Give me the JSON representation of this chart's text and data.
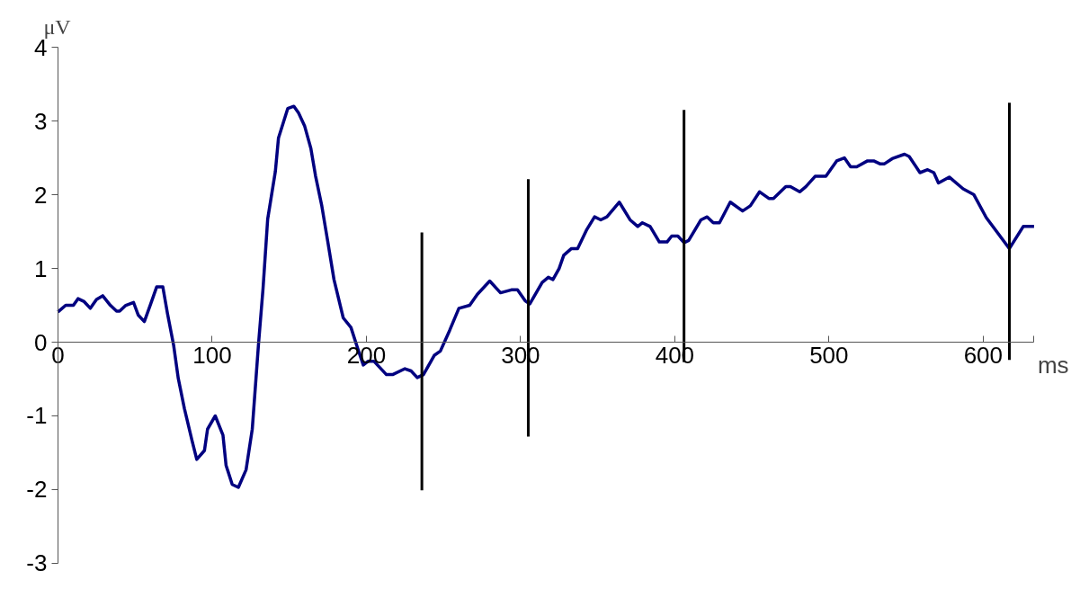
{
  "chart_data": {
    "type": "line",
    "xlabel": "ms",
    "ylabel": "μV",
    "xlim": [
      0,
      633
    ],
    "ylim": [
      -3,
      4
    ],
    "xticks": [
      0,
      100,
      200,
      300,
      400,
      500,
      600,
      {
        "value": 633,
        "label": null
      }
    ],
    "yticks": [
      -3,
      -2,
      -1,
      0,
      1,
      2,
      3,
      4
    ],
    "grid": false,
    "marker": "none",
    "line_style": "solid",
    "series": [
      {
        "color": "#000080",
        "x": [
          0,
          5,
          10,
          13,
          17,
          21,
          25,
          29,
          34,
          38,
          40,
          44,
          49,
          52,
          56,
          60,
          64,
          68,
          71,
          75,
          78,
          82,
          87,
          90,
          95,
          97,
          102,
          107,
          109,
          113,
          117,
          122,
          126,
          130,
          133,
          136,
          141,
          143,
          149,
          153,
          156,
          160,
          164,
          167,
          171,
          175,
          179,
          185,
          190,
          194,
          198,
          201,
          205,
          213,
          217,
          225,
          229,
          233,
          237,
          244,
          248,
          254,
          260,
          267,
          272,
          280,
          287,
          294,
          298,
          303,
          306,
          314,
          318,
          321,
          325,
          328,
          333,
          337,
          343,
          348,
          352,
          356,
          364,
          371,
          376,
          379,
          384,
          390,
          395,
          398,
          402,
          406,
          409,
          417,
          421,
          425,
          429,
          436,
          444,
          449,
          455,
          461,
          464,
          472,
          475,
          481,
          485,
          491,
          498,
          505,
          510,
          514,
          518,
          525,
          529,
          533,
          536,
          541,
          549,
          552,
          559,
          564,
          568,
          571,
          578,
          587,
          594,
          602,
          617,
          626,
          633
        ],
        "values": [
          0.41,
          0.5,
          0.5,
          0.59,
          0.55,
          0.46,
          0.58,
          0.63,
          0.5,
          0.42,
          0.42,
          0.5,
          0.54,
          0.37,
          0.28,
          0.51,
          0.75,
          0.75,
          0.39,
          -0.04,
          -0.49,
          -0.9,
          -1.34,
          -1.59,
          -1.47,
          -1.18,
          -1.0,
          -1.26,
          -1.67,
          -1.93,
          -1.97,
          -1.73,
          -1.18,
          -0.04,
          0.73,
          1.67,
          2.32,
          2.77,
          3.17,
          3.2,
          3.11,
          2.93,
          2.63,
          2.26,
          1.86,
          1.36,
          0.85,
          0.33,
          0.2,
          -0.06,
          -0.31,
          -0.26,
          -0.26,
          -0.44,
          -0.44,
          -0.36,
          -0.39,
          -0.48,
          -0.44,
          -0.18,
          -0.12,
          0.16,
          0.46,
          0.5,
          0.65,
          0.83,
          0.67,
          0.71,
          0.71,
          0.56,
          0.52,
          0.81,
          0.88,
          0.85,
          1.0,
          1.18,
          1.27,
          1.27,
          1.53,
          1.7,
          1.66,
          1.7,
          1.9,
          1.66,
          1.57,
          1.62,
          1.57,
          1.36,
          1.36,
          1.44,
          1.44,
          1.35,
          1.38,
          1.66,
          1.7,
          1.62,
          1.62,
          1.9,
          1.78,
          1.85,
          2.04,
          1.95,
          1.95,
          2.11,
          2.11,
          2.04,
          2.11,
          2.25,
          2.25,
          2.46,
          2.5,
          2.38,
          2.38,
          2.46,
          2.46,
          2.42,
          2.42,
          2.49,
          2.55,
          2.52,
          2.3,
          2.34,
          2.3,
          2.16,
          2.24,
          2.08,
          2.0,
          1.69,
          1.27,
          1.57,
          1.57
        ]
      },
      {
        "color": "#000000",
        "x": [
          236,
          236
        ],
        "values": [
          1.49,
          -2.01
        ]
      },
      {
        "color": "#000000",
        "x": [
          305,
          305
        ],
        "values": [
          2.21,
          -1.28
        ]
      },
      {
        "color": "#000000",
        "x": [
          406,
          406
        ],
        "values": [
          3.15,
          -0.27
        ]
      },
      {
        "color": "#000000",
        "x": [
          617,
          617
        ],
        "values": [
          3.25,
          -0.24
        ]
      }
    ]
  }
}
